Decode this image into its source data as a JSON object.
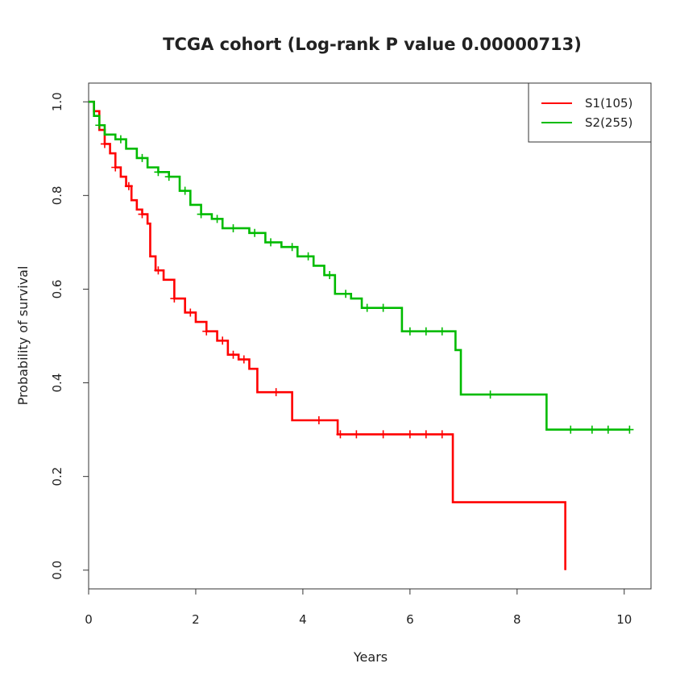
{
  "chart_data": {
    "type": "line",
    "title": "TCGA cohort (Log-rank P value 0.00000713)",
    "xlabel": "Years",
    "ylabel": "Probability of survival",
    "xlim": [
      0,
      10.5
    ],
    "ylim": [
      -0.04,
      1.04
    ],
    "xticks": [
      "0",
      "2",
      "4",
      "6",
      "8",
      "10"
    ],
    "yticks": [
      "0.0",
      "0.2",
      "0.4",
      "0.6",
      "0.8",
      "1.0"
    ],
    "grid": false,
    "legend_position": "top-right",
    "series": [
      {
        "name": "S1(105)",
        "color": "#ff0000",
        "x": [
          0,
          0.1,
          0.2,
          0.3,
          0.4,
          0.5,
          0.6,
          0.7,
          0.8,
          0.9,
          1.0,
          1.1,
          1.15,
          1.25,
          1.4,
          1.6,
          1.8,
          2.0,
          2.2,
          2.4,
          2.6,
          2.8,
          3.0,
          3.15,
          3.5,
          3.8,
          4.2,
          4.65,
          5.0,
          5.5,
          6.0,
          6.5,
          6.8,
          7.5,
          8.0,
          8.9,
          8.9
        ],
        "y": [
          1.0,
          0.98,
          0.94,
          0.91,
          0.89,
          0.86,
          0.84,
          0.82,
          0.79,
          0.77,
          0.76,
          0.74,
          0.67,
          0.64,
          0.62,
          0.58,
          0.55,
          0.53,
          0.51,
          0.49,
          0.46,
          0.45,
          0.43,
          0.38,
          0.38,
          0.32,
          0.32,
          0.29,
          0.29,
          0.29,
          0.29,
          0.29,
          0.145,
          0.145,
          0.145,
          0.145,
          0.0
        ]
      },
      {
        "name": "S2(255)",
        "color": "#00bb00",
        "x": [
          0,
          0.1,
          0.2,
          0.3,
          0.5,
          0.7,
          0.9,
          1.1,
          1.3,
          1.5,
          1.7,
          1.9,
          2.1,
          2.3,
          2.5,
          2.7,
          3.0,
          3.3,
          3.6,
          3.9,
          4.2,
          4.4,
          4.6,
          4.9,
          5.1,
          5.5,
          5.85,
          6.2,
          6.7,
          6.85,
          6.95,
          7.5,
          8.0,
          8.55,
          9.0,
          9.5,
          10.1
        ],
        "y": [
          1.0,
          0.97,
          0.95,
          0.93,
          0.92,
          0.9,
          0.88,
          0.86,
          0.85,
          0.84,
          0.81,
          0.78,
          0.76,
          0.75,
          0.73,
          0.73,
          0.72,
          0.7,
          0.69,
          0.67,
          0.65,
          0.63,
          0.59,
          0.58,
          0.56,
          0.56,
          0.51,
          0.51,
          0.51,
          0.47,
          0.375,
          0.375,
          0.375,
          0.3,
          0.3,
          0.3,
          0.3
        ]
      }
    ],
    "censor_marks": [
      {
        "series": "S1(105)",
        "x": [
          0.3,
          0.5,
          0.75,
          1.0,
          1.3,
          1.6,
          1.9,
          2.2,
          2.5,
          2.7,
          2.9,
          3.5,
          4.3,
          4.7,
          5.0,
          5.5,
          6.0,
          6.3,
          6.6
        ]
      },
      {
        "series": "S2(255)",
        "x": [
          0.2,
          0.6,
          1.0,
          1.3,
          1.5,
          1.8,
          2.1,
          2.4,
          2.7,
          3.1,
          3.4,
          3.8,
          4.1,
          4.5,
          4.8,
          5.2,
          5.5,
          6.0,
          6.3,
          6.6,
          7.5,
          9.0,
          9.4,
          9.7,
          10.1
        ]
      }
    ]
  }
}
